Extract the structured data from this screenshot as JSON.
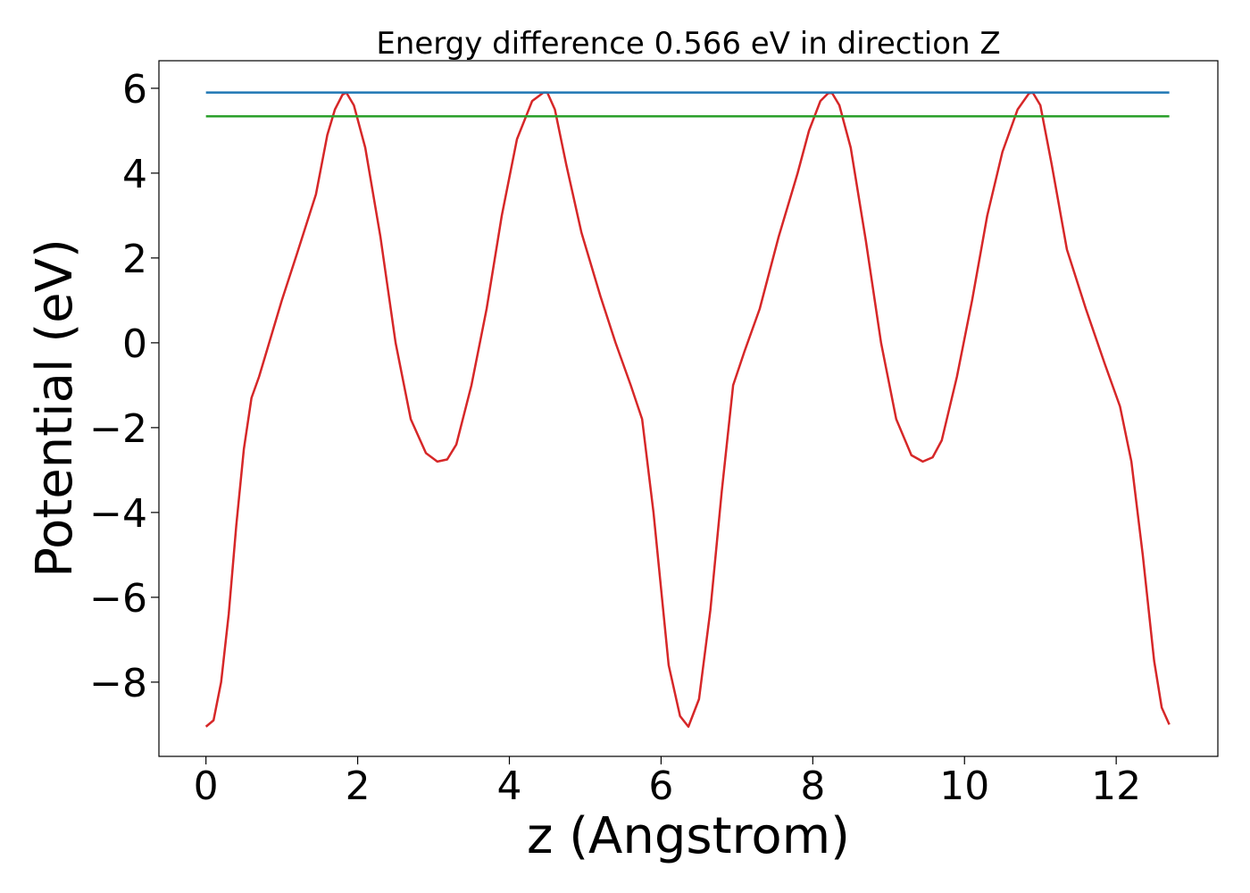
{
  "chart_data": {
    "type": "line",
    "title": "Energy difference 0.566 eV in direction Z",
    "xlabel": "z (Angstrom)",
    "ylabel": "Potential (eV)",
    "xlim": [
      -0.62,
      13.34
    ],
    "ylim": [
      -9.75,
      6.65
    ],
    "x_ticks": [
      0,
      2,
      4,
      6,
      8,
      10,
      12
    ],
    "y_ticks": [
      -8,
      -6,
      -4,
      -2,
      0,
      2,
      4,
      6
    ],
    "x_tick_labels": [
      "0",
      "2",
      "4",
      "6",
      "8",
      "10",
      "12"
    ],
    "y_tick_labels": [
      "−8",
      "−6",
      "−4",
      "−2",
      "0",
      "2",
      "4",
      "6"
    ],
    "grid": false,
    "legend": "none",
    "series": [
      {
        "color": "#d62728",
        "x": [
          0.0,
          0.1,
          0.2,
          0.3,
          0.4,
          0.5,
          0.6,
          0.7,
          0.8,
          1.0,
          1.2,
          1.45,
          1.6,
          1.7,
          1.8,
          1.85,
          1.95,
          2.1,
          2.3,
          2.5,
          2.7,
          2.9,
          3.05,
          3.18,
          3.3,
          3.5,
          3.7,
          3.9,
          4.1,
          4.3,
          4.45,
          4.5,
          4.6,
          4.75,
          4.95,
          5.2,
          5.4,
          5.6,
          5.75,
          5.9,
          6.1,
          6.25,
          6.36,
          6.5,
          6.65,
          6.8,
          6.95,
          7.1,
          7.3,
          7.55,
          7.8,
          7.95,
          8.1,
          8.2,
          8.25,
          8.35,
          8.5,
          8.7,
          8.9,
          9.1,
          9.3,
          9.45,
          9.58,
          9.7,
          9.9,
          10.1,
          10.3,
          10.5,
          10.7,
          10.85,
          10.9,
          11.0,
          11.15,
          11.35,
          11.6,
          11.85,
          12.05,
          12.2,
          12.35,
          12.5,
          12.6,
          12.7
        ],
        "y": [
          -9.05,
          -8.9,
          -8.0,
          -6.4,
          -4.3,
          -2.5,
          -1.3,
          -0.8,
          -0.2,
          1.0,
          2.1,
          3.5,
          4.9,
          5.5,
          5.85,
          5.9,
          5.6,
          4.6,
          2.5,
          0.0,
          -1.8,
          -2.6,
          -2.8,
          -2.75,
          -2.4,
          -1.0,
          0.8,
          3.0,
          4.8,
          5.7,
          5.9,
          5.9,
          5.5,
          4.2,
          2.6,
          1.1,
          0.0,
          -1.0,
          -1.8,
          -4.0,
          -7.6,
          -8.8,
          -9.05,
          -8.4,
          -6.3,
          -3.5,
          -1.0,
          -0.2,
          0.8,
          2.5,
          4.0,
          5.0,
          5.7,
          5.88,
          5.9,
          5.6,
          4.6,
          2.4,
          0.0,
          -1.8,
          -2.65,
          -2.8,
          -2.7,
          -2.3,
          -0.8,
          1.0,
          3.0,
          4.5,
          5.5,
          5.88,
          5.9,
          5.6,
          4.2,
          2.2,
          0.8,
          -0.5,
          -1.5,
          -2.8,
          -5.0,
          -7.5,
          -8.6,
          -9.0
        ]
      },
      {
        "color": "#1f77b4",
        "x": [
          0.0,
          12.7
        ],
        "y": [
          5.9,
          5.9
        ]
      },
      {
        "color": "#2ca02c",
        "x": [
          0.0,
          12.7
        ],
        "y": [
          5.34,
          5.34
        ]
      }
    ]
  }
}
